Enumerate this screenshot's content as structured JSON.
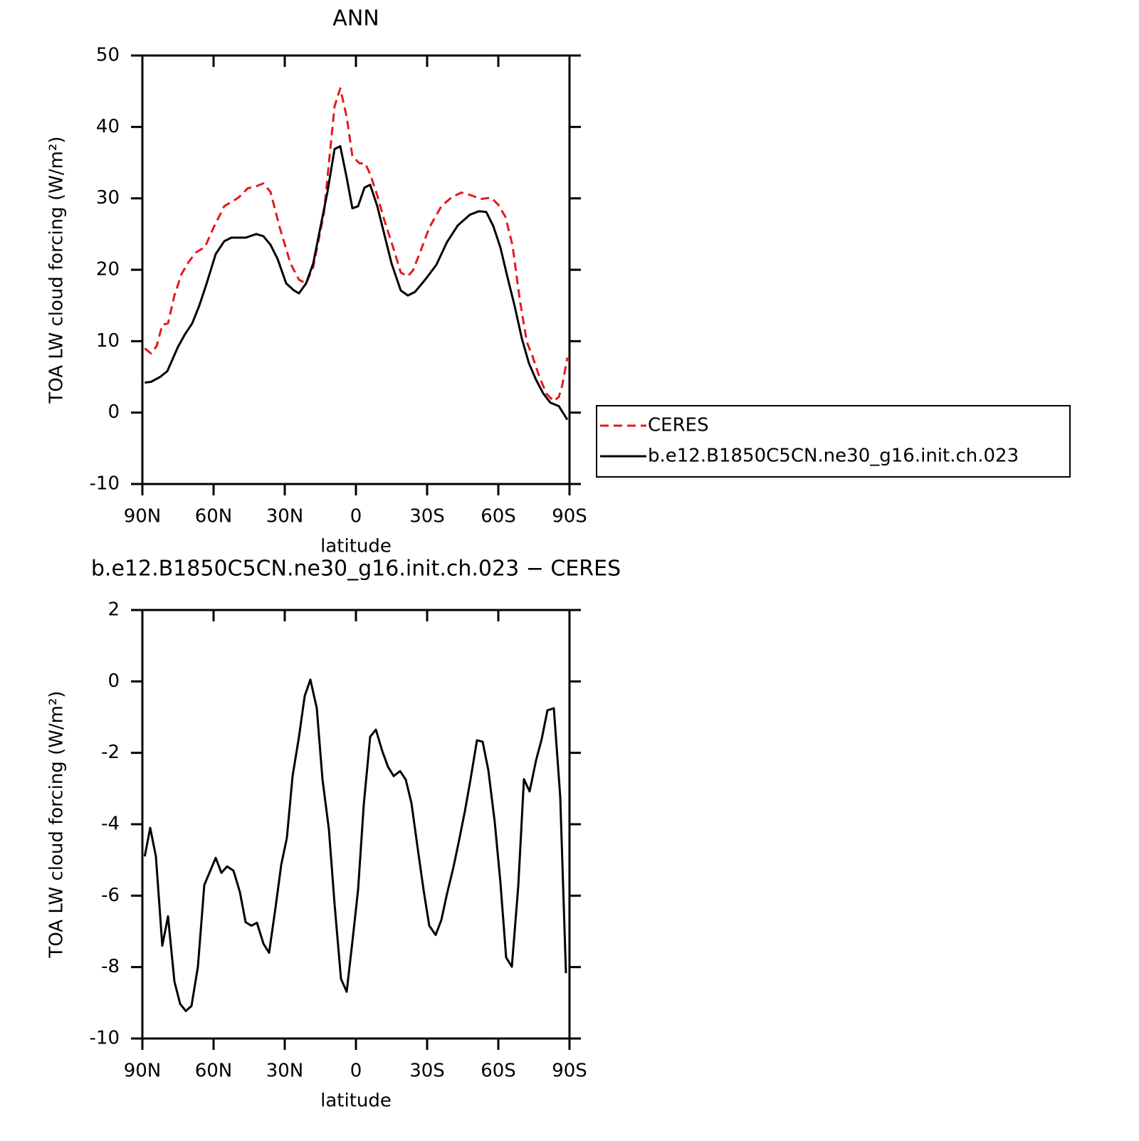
{
  "chart_data": [
    {
      "type": "line",
      "title": "ANN",
      "x_label": "latitude",
      "y_label": "TOA LW cloud forcing (W/m²)",
      "xlim": [
        90,
        -90
      ],
      "xticks": [
        {
          "value": 90,
          "label": "90N"
        },
        {
          "value": 60,
          "label": "60N"
        },
        {
          "value": 30,
          "label": "30N"
        },
        0,
        {
          "value": -30,
          "label": "30S"
        },
        {
          "value": -60,
          "label": "60S"
        },
        {
          "value": -90,
          "label": "90S"
        }
      ],
      "ylim": [
        -10,
        50
      ],
      "yticks": [
        -10,
        0,
        10,
        20,
        30,
        40,
        50
      ],
      "legend": "right",
      "series": [
        {
          "name": "CERES",
          "color": "#e31a1c",
          "style": "dashed",
          "x": [
            89,
            86.4,
            84,
            81.6,
            79.2,
            76.5,
            73.5,
            70.5,
            67.5,
            63.6,
            60,
            55.5,
            49.5,
            45.6,
            42,
            39,
            36,
            32.1,
            27.6,
            24,
            21,
            18,
            13.5,
            9,
            6.6,
            3.9,
            1.5,
            -1.5,
            -3.9,
            -6,
            -9,
            -12,
            -15.9,
            -18.9,
            -21.9,
            -24,
            -27,
            -30.9,
            -36,
            -40.5,
            -44.4,
            -48.9,
            -52.5,
            -57,
            -60,
            -63,
            -66,
            -69,
            -72,
            -74.4,
            -77.4,
            -80.4,
            -83.4,
            -85.5,
            -87,
            -89.1
          ],
          "values": [
            9.0,
            8.3,
            9.3,
            12.3,
            12.5,
            16.4,
            19.4,
            21.1,
            22.4,
            23.2,
            25.9,
            28.9,
            30.1,
            31.4,
            31.7,
            32.1,
            30.9,
            25.9,
            20.9,
            18.6,
            18.1,
            20.4,
            27.9,
            42.9,
            45.4,
            41.4,
            35.9,
            34.9,
            34.9,
            33.4,
            30.4,
            26.9,
            22.9,
            19.6,
            19.1,
            19.9,
            22.4,
            25.9,
            28.9,
            30.2,
            30.8,
            30.4,
            29.9,
            30.1,
            29.1,
            27.4,
            23.4,
            15.9,
            9.9,
            7.9,
            4.9,
            2.6,
            1.6,
            2.2,
            3.9,
            7.7
          ]
        },
        {
          "name": "b.e12.B1850C5CN.ne30_g16.init.ch.023",
          "color": "#000000",
          "style": "solid",
          "x": [
            89,
            86.4,
            82.5,
            79.5,
            75,
            72,
            69,
            66,
            63,
            59.1,
            55.5,
            52.5,
            46.5,
            42,
            39,
            36,
            33,
            29.4,
            26.1,
            24,
            21,
            18,
            15,
            12,
            9,
            6.6,
            3.9,
            1.5,
            -0.9,
            -3.6,
            -6,
            -9,
            -12,
            -15,
            -18.9,
            -21.9,
            -24.9,
            -29.4,
            -33.9,
            -38.4,
            -42.9,
            -48,
            -51.9,
            -54.9,
            -57.9,
            -60.9,
            -63.9,
            -66.9,
            -69.9,
            -72.9,
            -75.9,
            -78.9,
            -81.9,
            -85.5,
            -89.1
          ],
          "values": [
            4.2,
            4.3,
            5.0,
            5.8,
            9.2,
            11.0,
            12.5,
            15.0,
            18.0,
            22.2,
            24.0,
            24.5,
            24.5,
            25.0,
            24.7,
            23.5,
            21.5,
            18.1,
            17.1,
            16.7,
            18.1,
            20.9,
            25.9,
            30.9,
            36.9,
            37.3,
            32.9,
            28.6,
            28.9,
            31.5,
            31.9,
            28.9,
            24.9,
            20.9,
            17.1,
            16.4,
            16.9,
            18.7,
            20.7,
            23.9,
            26.2,
            27.7,
            28.2,
            28.1,
            26.1,
            23.1,
            18.9,
            14.9,
            10.4,
            6.9,
            4.6,
            2.7,
            1.4,
            0.9,
            -1.0
          ]
        }
      ]
    },
    {
      "type": "line",
      "title": "b.e12.B1850C5CN.ne30_g16.init.ch.023 − CERES",
      "x_label": "latitude",
      "y_label": "TOA LW cloud forcing (W/m²)",
      "xlim": [
        90,
        -90
      ],
      "xticks": [
        {
          "value": 90,
          "label": "90N"
        },
        {
          "value": 60,
          "label": "60N"
        },
        {
          "value": 30,
          "label": "30N"
        },
        0,
        {
          "value": -30,
          "label": "30S"
        },
        {
          "value": -60,
          "label": "60S"
        },
        {
          "value": -90,
          "label": "90S"
        }
      ],
      "ylim": [
        -10,
        2
      ],
      "yticks": [
        -10,
        -8,
        -6,
        -4,
        -2,
        0,
        2
      ],
      "color": "#000000",
      "x": [
        89,
        86.7,
        84.3,
        81.6,
        79.2,
        76.5,
        74.1,
        71.7,
        69.3,
        66.6,
        63.9,
        59.1,
        56.7,
        54.3,
        51.6,
        48.9,
        46.5,
        44.1,
        41.7,
        39,
        36.6,
        33.9,
        31.5,
        29.1,
        26.7,
        24,
        21.6,
        19.2,
        16.5,
        14.1,
        11.4,
        9,
        6.3,
        3.9,
        1.5,
        -0.9,
        -3.3,
        -6,
        -8.4,
        -11.1,
        -13.5,
        -15.9,
        -18.6,
        -21,
        -23.4,
        -26.1,
        -28.5,
        -30.9,
        -33.6,
        -36,
        -38.4,
        -41.1,
        -43.5,
        -45.9,
        -48.3,
        -51,
        -53.4,
        -55.8,
        -58.5,
        -60.9,
        -63.3,
        -65.7,
        -68.4,
        -70.8,
        -73.2,
        -75.9,
        -78.3,
        -80.7,
        -83.4,
        -86.1,
        -88.5
      ],
      "values": [
        -4.9,
        -4.1,
        -4.9,
        -7.4,
        -6.58,
        -8.4,
        -9.03,
        -9.23,
        -9.09,
        -7.99,
        -5.7,
        -4.94,
        -5.36,
        -5.18,
        -5.3,
        -5.9,
        -6.74,
        -6.84,
        -6.76,
        -7.34,
        -7.6,
        -6.34,
        -5.14,
        -4.38,
        -2.65,
        -1.55,
        -0.41,
        0.05,
        -0.75,
        -2.74,
        -4.14,
        -6.24,
        -8.33,
        -8.69,
        -7.29,
        -5.84,
        -3.45,
        -1.55,
        -1.35,
        -1.95,
        -2.39,
        -2.65,
        -2.51,
        -2.75,
        -3.41,
        -4.71,
        -5.84,
        -6.84,
        -7.1,
        -6.68,
        -5.94,
        -5.2,
        -4.44,
        -3.64,
        -2.74,
        -1.65,
        -1.69,
        -2.49,
        -3.94,
        -5.64,
        -7.73,
        -7.99,
        -5.74,
        -2.74,
        -3.08,
        -2.21,
        -1.61,
        -0.81,
        -0.75,
        -3.24,
        -8.17
      ]
    }
  ]
}
